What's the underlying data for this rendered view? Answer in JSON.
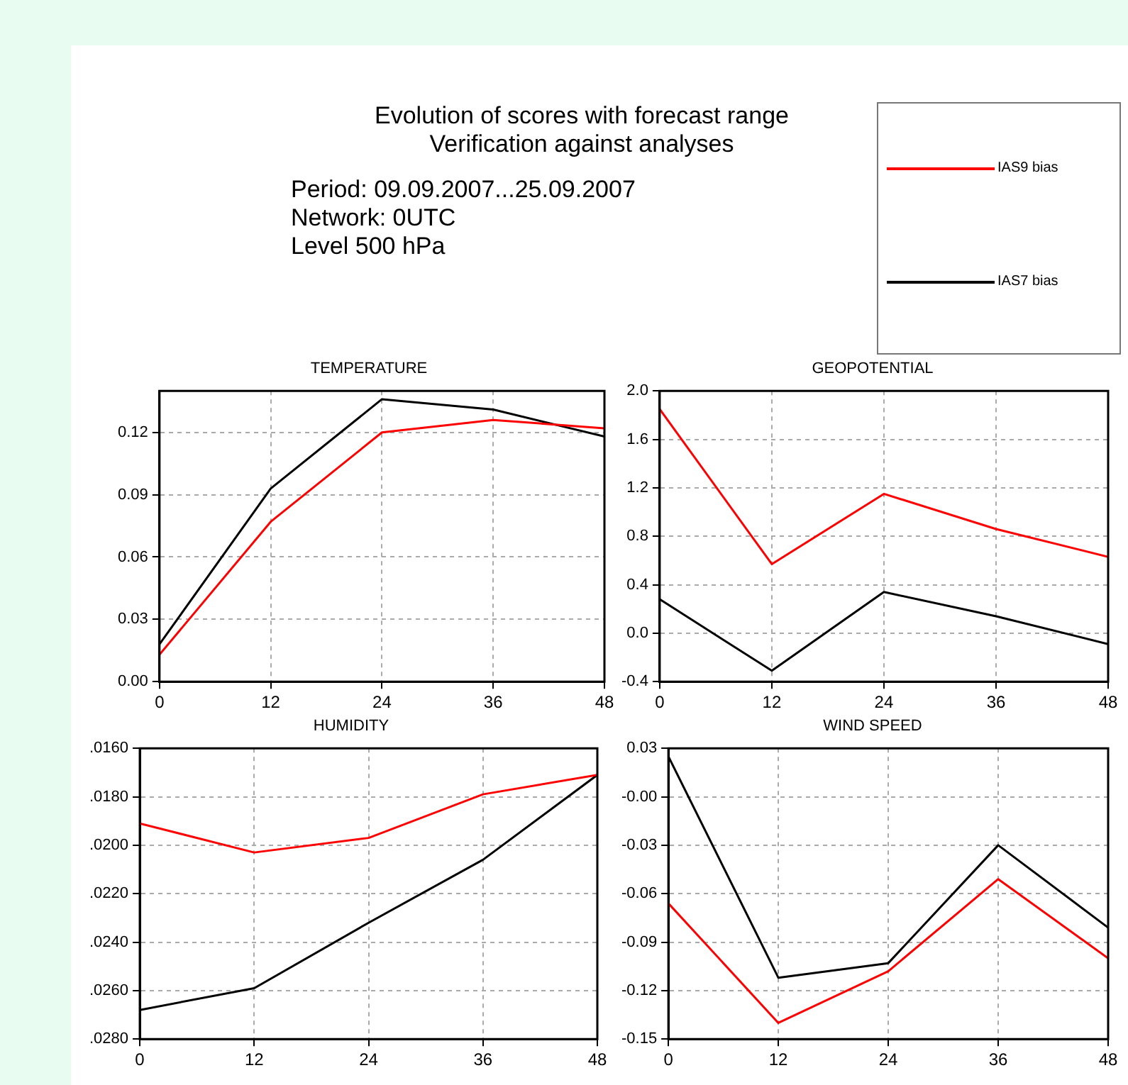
{
  "chart_data": [
    {
      "type": "other",
      "title": "Evolution of scores with forecast range",
      "subtitle": "Verification against analyses",
      "annotations": [
        "Period: 09.09.2007...25.09.2007",
        "Network: 0UTC",
        "Level 500 hPa"
      ]
    },
    {
      "type": "line",
      "title": "TEMPERATURE",
      "x": [
        0,
        12,
        24,
        36,
        48
      ],
      "xlim": [
        0,
        48
      ],
      "xticks": [
        0,
        12,
        24,
        36,
        48
      ],
      "ylim": [
        0,
        0.14
      ],
      "yticks": [
        {
          "value": 0,
          "label": "0.00"
        },
        0.03,
        0.06,
        0.09,
        0.12
      ],
      "grid": true,
      "legend": "top right",
      "line_style": "solid",
      "series": [
        {
          "name": "IAS9 bias",
          "color": "#ff0000",
          "values": [
            0.013,
            0.077,
            0.12,
            0.126,
            0.122
          ]
        },
        {
          "name": "IAS7 bias",
          "color": "#000000",
          "values": [
            0.018,
            0.093,
            0.136,
            0.131,
            0.118
          ]
        }
      ]
    },
    {
      "type": "line",
      "title": "GEOPOTENTIAL",
      "x": [
        0,
        12,
        24,
        36,
        48
      ],
      "xlim": [
        0,
        48
      ],
      "xticks": [
        0,
        12,
        24,
        36,
        48
      ],
      "ylim": [
        -0.4,
        2.0
      ],
      "yticks": [
        -0.4,
        {
          "value": 0,
          "label": "0.0"
        },
        0.4,
        0.8,
        1.2,
        1.6,
        {
          "value": 2,
          "label": "2.0"
        }
      ],
      "grid": true,
      "line_style": "solid",
      "series": [
        {
          "color": "#ff0000",
          "values": [
            1.85,
            0.57,
            1.15,
            0.86,
            0.63
          ]
        },
        {
          "color": "#000000",
          "values": [
            0.28,
            -0.31,
            0.34,
            0.14,
            -0.09
          ]
        }
      ]
    },
    {
      "type": "line",
      "title": "HUMIDITY",
      "x": [
        0,
        12,
        24,
        36,
        48
      ],
      "xlim": [
        0,
        48
      ],
      "xticks": [
        0,
        12,
        24,
        36,
        48
      ],
      "ylim": [
        0.028,
        0.016
      ],
      "yticks": [
        {
          "value": 0.016,
          "label": ".0160"
        },
        {
          "value": 0.018,
          "label": ".0180"
        },
        {
          "value": 0.02,
          "label": ".0200"
        },
        {
          "value": 0.022,
          "label": ".0220"
        },
        {
          "value": 0.024,
          "label": ".0240"
        },
        {
          "value": 0.026,
          "label": ".0260"
        },
        {
          "value": 0.028,
          "label": ".0280"
        }
      ],
      "grid": true,
      "line_style": "solid",
      "series": [
        {
          "color": "#ff0000",
          "values": [
            0.0191,
            0.0203,
            0.0197,
            0.0179,
            0.0171
          ]
        },
        {
          "color": "#000000",
          "values": [
            0.0268,
            0.0259,
            0.0232,
            0.0206,
            0.0171
          ]
        }
      ]
    },
    {
      "type": "line",
      "title": "WIND SPEED",
      "x": [
        0,
        12,
        24,
        36,
        48
      ],
      "xlim": [
        0,
        48
      ],
      "xticks": [
        0,
        12,
        24,
        36,
        48
      ],
      "ylim": [
        -0.15,
        0.03
      ],
      "yticks": [
        -0.15,
        -0.12,
        -0.09,
        -0.06,
        -0.03,
        {
          "value": 0,
          "label": "-0.00"
        },
        0.03
      ],
      "grid": true,
      "line_style": "solid",
      "series": [
        {
          "color": "#ff0000",
          "values": [
            -0.066,
            -0.14,
            -0.108,
            -0.051,
            -0.1
          ]
        },
        {
          "color": "#000000",
          "values": [
            0.025,
            -0.112,
            -0.103,
            -0.03,
            -0.081
          ]
        }
      ]
    }
  ]
}
